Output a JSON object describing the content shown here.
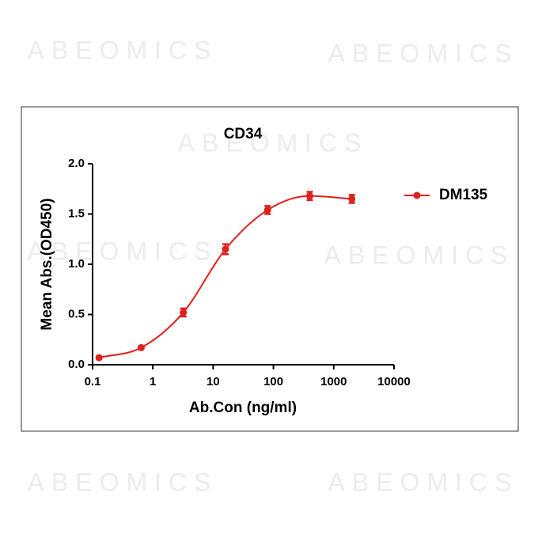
{
  "watermark": "ABEOMICS",
  "chart_data": {
    "type": "scatter",
    "title": "CD34",
    "x_label": "Ab.Con (ng/ml)",
    "y_label": "Mean Abs.(OD450)",
    "x_scale": "log",
    "xlim": [
      0.1,
      10000
    ],
    "xticks": [
      0.1,
      1,
      10,
      100,
      1000,
      10000
    ],
    "ylim": [
      0,
      2
    ],
    "yticks": [
      {
        "value": 0,
        "label": "0.0"
      },
      0.5,
      {
        "value": 1,
        "label": "1.0"
      },
      1.5,
      {
        "value": 2,
        "label": "2.0"
      }
    ],
    "legend": "right",
    "series": [
      {
        "name": "DM135",
        "color": "#e0201b",
        "x": [
          0.128,
          0.64,
          3.2,
          16,
          80,
          400,
          2000
        ],
        "values": [
          0.07,
          0.17,
          0.52,
          1.15,
          1.54,
          1.68,
          1.65
        ],
        "errors": [
          0.01,
          0.01,
          0.04,
          0.05,
          0.04,
          0.04,
          0.04
        ]
      }
    ]
  }
}
